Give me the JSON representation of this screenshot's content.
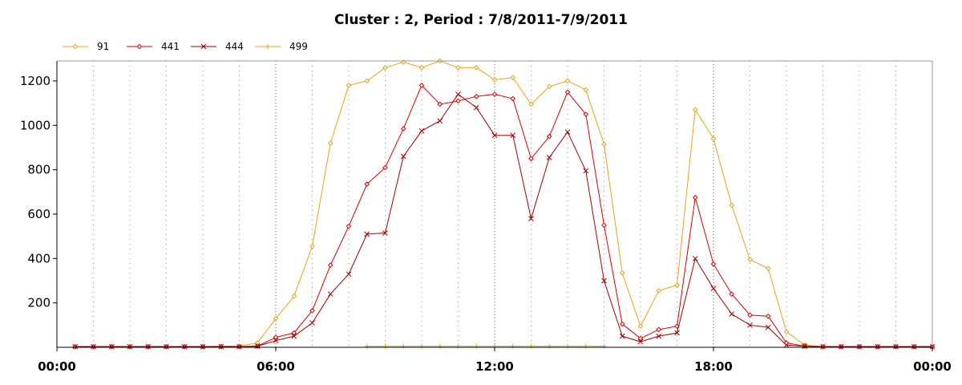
{
  "chart_data": {
    "type": "line",
    "title": "Cluster : 2, Period : 7/8/2011-7/9/2011",
    "xlabel": "",
    "ylabel": "",
    "x_ticks": [
      "00:00",
      "06:00",
      "12:00",
      "18:00",
      "00:00"
    ],
    "x_range_hours": [
      0,
      24
    ],
    "ylim": [
      0,
      1290
    ],
    "y_ticks": [
      200,
      400,
      600,
      800,
      1000,
      1200
    ],
    "grid": "dotted vertical lines every hour",
    "legend_position": "top-left",
    "series": [
      {
        "name": "91",
        "color": "#e8a317",
        "marker": "diamond",
        "x": [
          0.5,
          1,
          1.5,
          2,
          2.5,
          3,
          3.5,
          4,
          4.5,
          5,
          5.5,
          6,
          6.5,
          7,
          7.5,
          8,
          8.5,
          9,
          9.5,
          10,
          10.5,
          11,
          11.5,
          12,
          12.5,
          13,
          13.5,
          14,
          14.5,
          15,
          15.5,
          16,
          16.5,
          17,
          17.5,
          18,
          18.5,
          19,
          19.5,
          20,
          20.5,
          21,
          21.5,
          22,
          22.5,
          23,
          23.5,
          24
        ],
        "values": [
          3,
          3,
          3,
          3,
          3,
          3,
          3,
          3,
          5,
          5,
          20,
          130,
          230,
          455,
          920,
          1180,
          1200,
          1260,
          1285,
          1260,
          1290,
          1260,
          1260,
          1205,
          1215,
          1095,
          1175,
          1200,
          1160,
          915,
          335,
          95,
          255,
          280,
          1070,
          940,
          640,
          395,
          355,
          70,
          10,
          3,
          3,
          3,
          3,
          3,
          3,
          3
        ]
      },
      {
        "name": "441",
        "color": "#d40000",
        "marker": "diamond",
        "x": [
          0.5,
          1,
          1.5,
          2,
          2.5,
          3,
          3.5,
          4,
          4.5,
          5,
          5.5,
          6,
          6.5,
          7,
          7.5,
          8,
          8.5,
          9,
          9.5,
          10,
          10.5,
          11,
          11.5,
          12,
          12.5,
          13,
          13.5,
          14,
          14.5,
          15,
          15.5,
          16,
          16.5,
          17,
          17.5,
          18,
          18.5,
          19,
          19.5,
          20,
          20.5,
          21,
          21.5,
          22,
          22.5,
          23,
          23.5,
          24
        ],
        "values": [
          3,
          3,
          3,
          3,
          3,
          3,
          3,
          3,
          3,
          3,
          5,
          45,
          65,
          165,
          370,
          545,
          735,
          810,
          985,
          1180,
          1095,
          1110,
          1130,
          1140,
          1120,
          850,
          950,
          1150,
          1050,
          550,
          105,
          40,
          80,
          95,
          675,
          375,
          240,
          145,
          140,
          20,
          5,
          3,
          3,
          3,
          3,
          3,
          3,
          3
        ]
      },
      {
        "name": "444",
        "color": "#a00000",
        "marker": "x",
        "x": [
          0.5,
          1,
          1.5,
          2,
          2.5,
          3,
          3.5,
          4,
          4.5,
          5,
          5.5,
          6,
          6.5,
          7,
          7.5,
          8,
          8.5,
          9,
          9.5,
          10,
          10.5,
          11,
          11.5,
          12,
          12.5,
          13,
          13.5,
          14,
          14.5,
          15,
          15.5,
          16,
          16.5,
          17,
          17.5,
          18,
          18.5,
          19,
          19.5,
          20,
          20.5,
          21,
          21.5,
          22,
          22.5,
          23,
          23.5,
          24
        ],
        "values": [
          3,
          3,
          3,
          3,
          3,
          3,
          3,
          3,
          3,
          3,
          5,
          30,
          50,
          110,
          240,
          330,
          510,
          515,
          860,
          975,
          1020,
          1140,
          1080,
          955,
          955,
          580,
          855,
          970,
          795,
          300,
          50,
          25,
          50,
          65,
          400,
          265,
          150,
          100,
          90,
          10,
          5,
          3,
          3,
          3,
          3,
          3,
          3,
          3
        ]
      },
      {
        "name": "499",
        "color": "#e8a317",
        "marker": "plus",
        "x": [
          8.5,
          9,
          9.5,
          10,
          10.5,
          11,
          11.5,
          12,
          12.5,
          13,
          13.5,
          14,
          14.5,
          15
        ],
        "values": [
          5,
          5,
          5,
          5,
          5,
          5,
          5,
          5,
          5,
          5,
          5,
          5,
          5,
          5
        ]
      }
    ]
  }
}
